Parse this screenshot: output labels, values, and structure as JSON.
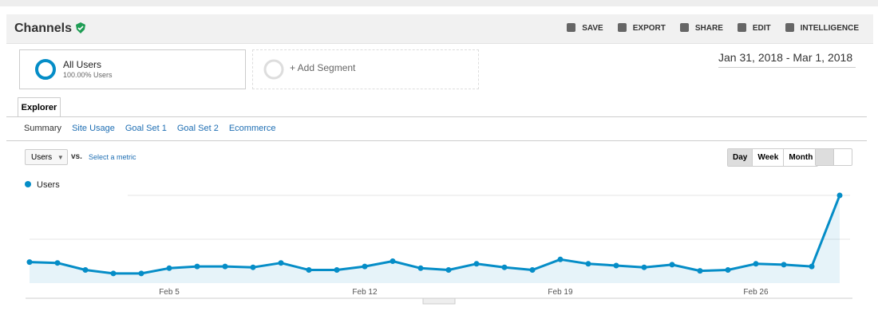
{
  "header": {
    "title": "Channels",
    "actions": [
      "SAVE",
      "EXPORT",
      "SHARE",
      "EDIT",
      "INTELLIGENCE"
    ]
  },
  "segment": {
    "name": "All Users",
    "detail": "100.00% Users"
  },
  "add_segment": "+ Add Segment",
  "date_range": "Jan 31, 2018 - Mar 1, 2018",
  "tab": "Explorer",
  "subtabs": [
    "Summary",
    "Site Usage",
    "Goal Set 1",
    "Goal Set 2",
    "Ecommerce"
  ],
  "metric_select": "Users",
  "vs": "vs.",
  "select_metric": "Select a metric",
  "periods": [
    "Day",
    "Week",
    "Month"
  ],
  "chart_data": {
    "type": "line",
    "categories": [
      null,
      null,
      null,
      null,
      null,
      "Feb 5",
      null,
      null,
      null,
      null,
      null,
      null,
      "Feb 12",
      null,
      null,
      null,
      null,
      null,
      null,
      "Feb 19",
      null,
      null,
      null,
      null,
      null,
      null,
      "Feb 26",
      null,
      null,
      null
    ],
    "series": [
      {
        "name": "Users",
        "color": "#058dc7",
        "values": [
          24,
          23,
          15,
          11,
          11,
          17,
          19,
          19,
          18,
          23,
          15,
          15,
          19,
          25,
          17,
          15,
          22,
          18,
          15,
          27,
          22,
          20,
          18,
          21,
          14,
          15,
          22,
          21,
          19,
          100
        ]
      }
    ],
    "ylim": [
      0,
      100
    ]
  }
}
